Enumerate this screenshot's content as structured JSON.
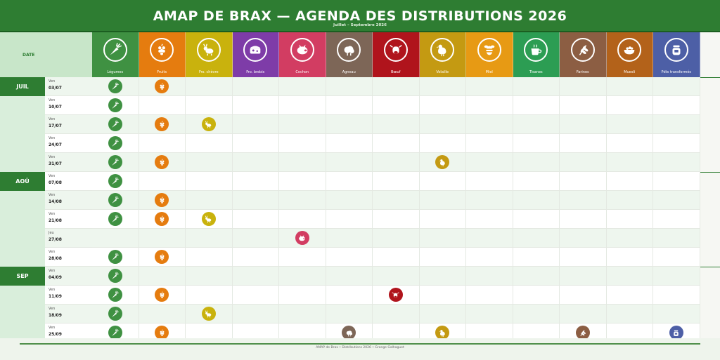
{
  "header": {
    "title": "AMAP DE BRAX  —  AGENDA DES DISTRIBUTIONS 2026",
    "subtitle": "Juillet – Septembre 2026"
  },
  "date_header": "DATE",
  "columns": [
    {
      "key": "legumes",
      "label": "Légumes",
      "icon": "carrot-icon",
      "color": "#3f9142"
    },
    {
      "key": "fruits",
      "label": "Fruits",
      "icon": "grapes-icon",
      "color": "#e57c0f"
    },
    {
      "key": "chevre",
      "label": "Fro. chèvre",
      "icon": "goat-icon",
      "color": "#c9b20d"
    },
    {
      "key": "brebis",
      "label": "Fro. brebis",
      "icon": "cheese-icon",
      "color": "#7e3ca8"
    },
    {
      "key": "cochon",
      "label": "Cochon",
      "icon": "pig-icon",
      "color": "#d23d62"
    },
    {
      "key": "agneau",
      "label": "Agneau",
      "icon": "sheep-icon",
      "color": "#7d6657"
    },
    {
      "key": "boeuf",
      "label": "Bœuf",
      "icon": "cow-icon",
      "color": "#b0141c"
    },
    {
      "key": "volaille",
      "label": "Volaille",
      "icon": "chicken-icon",
      "color": "#c49a12"
    },
    {
      "key": "miel",
      "label": "Miel",
      "icon": "bee-icon",
      "color": "#e79a14"
    },
    {
      "key": "tisanes",
      "label": "Tisanes",
      "icon": "tea-cup-icon",
      "color": "#2c9d53"
    },
    {
      "key": "farines",
      "label": "Farines",
      "icon": "wheat-icon",
      "color": "#8c5e43"
    },
    {
      "key": "muesli",
      "label": "Muesli",
      "icon": "bowl-icon",
      "color": "#b3621a"
    },
    {
      "key": "transformes",
      "label": "Pdts transformés",
      "icon": "jar-icon",
      "color": "#4d5fa6"
    }
  ],
  "months": [
    {
      "label": "JUIL",
      "start_row": 0
    },
    {
      "label": "AOÛ",
      "start_row": 5
    },
    {
      "label": "SEP",
      "start_row": 10
    }
  ],
  "rows": [
    {
      "day": "Ven",
      "date": "03/07",
      "items": [
        "legumes",
        "fruits"
      ]
    },
    {
      "day": "Ven",
      "date": "10/07",
      "items": [
        "legumes"
      ]
    },
    {
      "day": "Ven",
      "date": "17/07",
      "items": [
        "legumes",
        "fruits",
        "chevre"
      ]
    },
    {
      "day": "Ven",
      "date": "24/07",
      "items": [
        "legumes"
      ]
    },
    {
      "day": "Ven",
      "date": "31/07",
      "items": [
        "legumes",
        "fruits",
        "volaille"
      ]
    },
    {
      "day": "Ven",
      "date": "07/08",
      "items": [
        "legumes"
      ]
    },
    {
      "day": "Ven",
      "date": "14/08",
      "items": [
        "legumes",
        "fruits"
      ]
    },
    {
      "day": "Ven",
      "date": "21/08",
      "items": [
        "legumes",
        "fruits",
        "chevre"
      ]
    },
    {
      "day": "Jeu",
      "date": "27/08",
      "items": [
        "cochon"
      ]
    },
    {
      "day": "Ven",
      "date": "28/08",
      "items": [
        "legumes",
        "fruits"
      ]
    },
    {
      "day": "Ven",
      "date": "04/09",
      "items": [
        "legumes"
      ]
    },
    {
      "day": "Ven",
      "date": "11/09",
      "items": [
        "legumes",
        "fruits",
        "boeuf"
      ]
    },
    {
      "day": "Ven",
      "date": "18/09",
      "items": [
        "legumes",
        "chevre"
      ]
    },
    {
      "day": "Ven",
      "date": "25/09",
      "items": [
        "legumes",
        "fruits",
        "agneau",
        "volaille",
        "farines",
        "transformes"
      ]
    }
  ],
  "footer": "AMAP de Brax  •  Distributions 2026  •  Grange Galhaguet"
}
